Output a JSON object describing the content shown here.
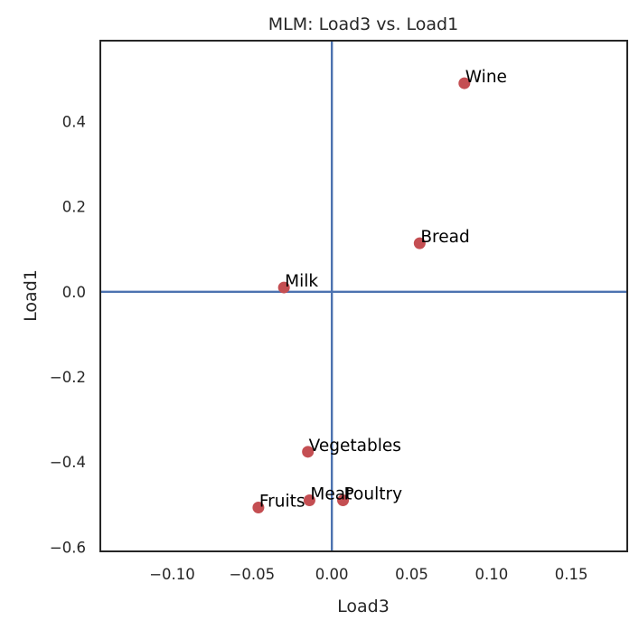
{
  "chart_data": {
    "type": "scatter",
    "title": "MLM: Load3 vs. Load1",
    "xlabel": "Load3",
    "ylabel": "Load1",
    "xlim": [
      -0.145,
      0.185
    ],
    "ylim": [
      -0.61,
      0.59
    ],
    "xticks": [
      -0.1,
      -0.05,
      0.0,
      0.05,
      0.1,
      0.15
    ],
    "xtick_labels": [
      "−0.10",
      "−0.05",
      "0.00",
      "0.05",
      "0.10",
      "0.15"
    ],
    "yticks": [
      -0.6,
      -0.4,
      -0.2,
      0.0,
      0.2,
      0.4
    ],
    "ytick_labels": [
      "−0.6",
      "−0.4",
      "−0.2",
      "0.0",
      "0.2",
      "0.4"
    ],
    "grid": false,
    "reference_lines": {
      "x": 0.0,
      "y": 0.0,
      "color": "#4c72b0"
    },
    "point_color": "#c44e52",
    "frame_color": "#262626",
    "points": [
      {
        "label": "Wine",
        "x": 0.083,
        "y": 0.49
      },
      {
        "label": "Bread",
        "x": 0.055,
        "y": 0.114
      },
      {
        "label": "Milk",
        "x": -0.03,
        "y": 0.01
      },
      {
        "label": "Vegetables",
        "x": -0.015,
        "y": -0.376
      },
      {
        "label": "Meat",
        "x": -0.014,
        "y": -0.49
      },
      {
        "label": "Poultry",
        "x": 0.007,
        "y": -0.49
      },
      {
        "label": "Fruits",
        "x": -0.046,
        "y": -0.507
      }
    ]
  }
}
